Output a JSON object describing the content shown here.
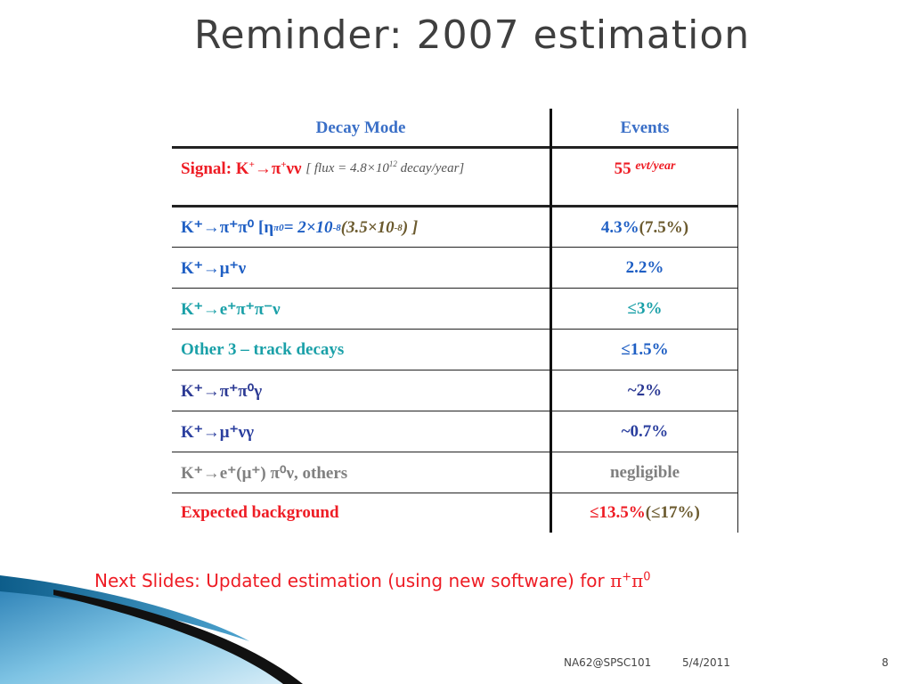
{
  "title": "Reminder: 2007 estimation",
  "table": {
    "headers": {
      "mode": "Decay Mode",
      "events": "Events"
    },
    "signal": {
      "label": "Signal: K",
      "arrow": "→π",
      "end": "νν",
      "flux": "[ flux = 4.8×10",
      "flux_exp": "12",
      "flux_tail": " decay/year]",
      "events_value": "55",
      "events_unit": "evt/year"
    },
    "rows": [
      {
        "mode": "K⁺→π⁺π⁰  [η",
        "mode_sub": "π0",
        "mode_mid": " = 2×10",
        "mode_exp": "-8",
        "mode_paren": " (3.5×10",
        "mode_paren_exp": "-8",
        "mode_end": ") ]",
        "events": "4.3%",
        "events_paren": " (7.5%)"
      },
      {
        "mode": "K⁺→μ⁺ν",
        "events": "2.2%"
      },
      {
        "mode": "K⁺→e⁺π⁺π⁻ν",
        "events": "≤3%"
      },
      {
        "mode": "Other 3 – track decays",
        "events": "≤1.5%"
      },
      {
        "mode": "K⁺→π⁺π⁰γ",
        "events": "~2%"
      },
      {
        "mode": "K⁺→μ⁺νγ",
        "events": "~0.7%"
      },
      {
        "mode": "K⁺→e⁺(μ⁺)  π⁰ν, others",
        "events": "negligible"
      },
      {
        "mode": "Expected background",
        "events": "≤13.5%",
        "events_paren": " (≤17%)"
      }
    ]
  },
  "note": {
    "text": "Next Slides: Updated estimation (using new software) for ",
    "pi1": "π",
    "sup1": "+",
    "pi2": "π",
    "sup2": "0"
  },
  "footer": {
    "left": "NA62@SPSC101",
    "date": "5/4/2011",
    "page": "8"
  },
  "colors": {
    "red": "#ee1c24",
    "blue": "#1f5fc4",
    "teal": "#1aa0a8",
    "title_gray": "#3f3f3f"
  }
}
